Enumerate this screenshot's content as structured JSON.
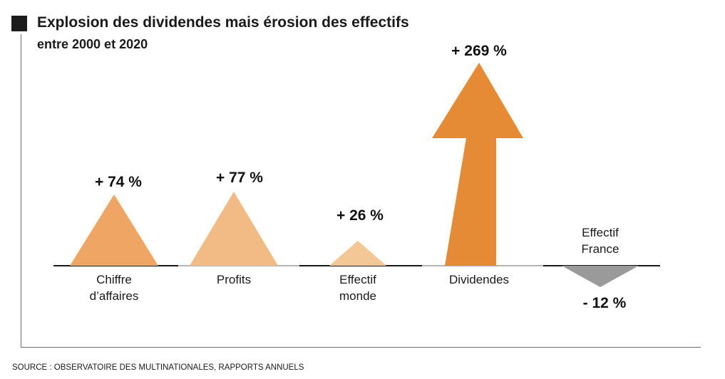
{
  "title": "Explosion des dividendes mais érosion des effectifs",
  "subtitle": "entre 2000 et 2020",
  "source": "SOURCE : OBSERVATOIRE DES MULTINATIONALES, RAPPORTS ANNUELS",
  "colors": {
    "orange_strong": "#e58a35",
    "orange_medium": "#efa564",
    "orange_light": "#f2bb86",
    "orange_pale": "#f4c796",
    "grey": "#9a9a9a"
  },
  "chart_data": {
    "type": "bar",
    "categories": [
      "Chiffre d’affaires",
      "Profits",
      "Effectif monde",
      "Dividendes",
      "Effectif France"
    ],
    "values": [
      74,
      77,
      26,
      269,
      -12
    ],
    "value_labels": [
      "+ 74 %",
      "+ 77 %",
      "+ 26 %",
      "+ 269 %",
      "- 12 %"
    ],
    "category_lines": [
      [
        "Chiffre",
        "d’affaires"
      ],
      [
        "Profits"
      ],
      [
        "Effectif",
        "monde"
      ],
      [
        "Dividendes"
      ],
      [
        "Effectif",
        "France"
      ]
    ],
    "unit": "%",
    "grid": false,
    "legend": "none"
  }
}
